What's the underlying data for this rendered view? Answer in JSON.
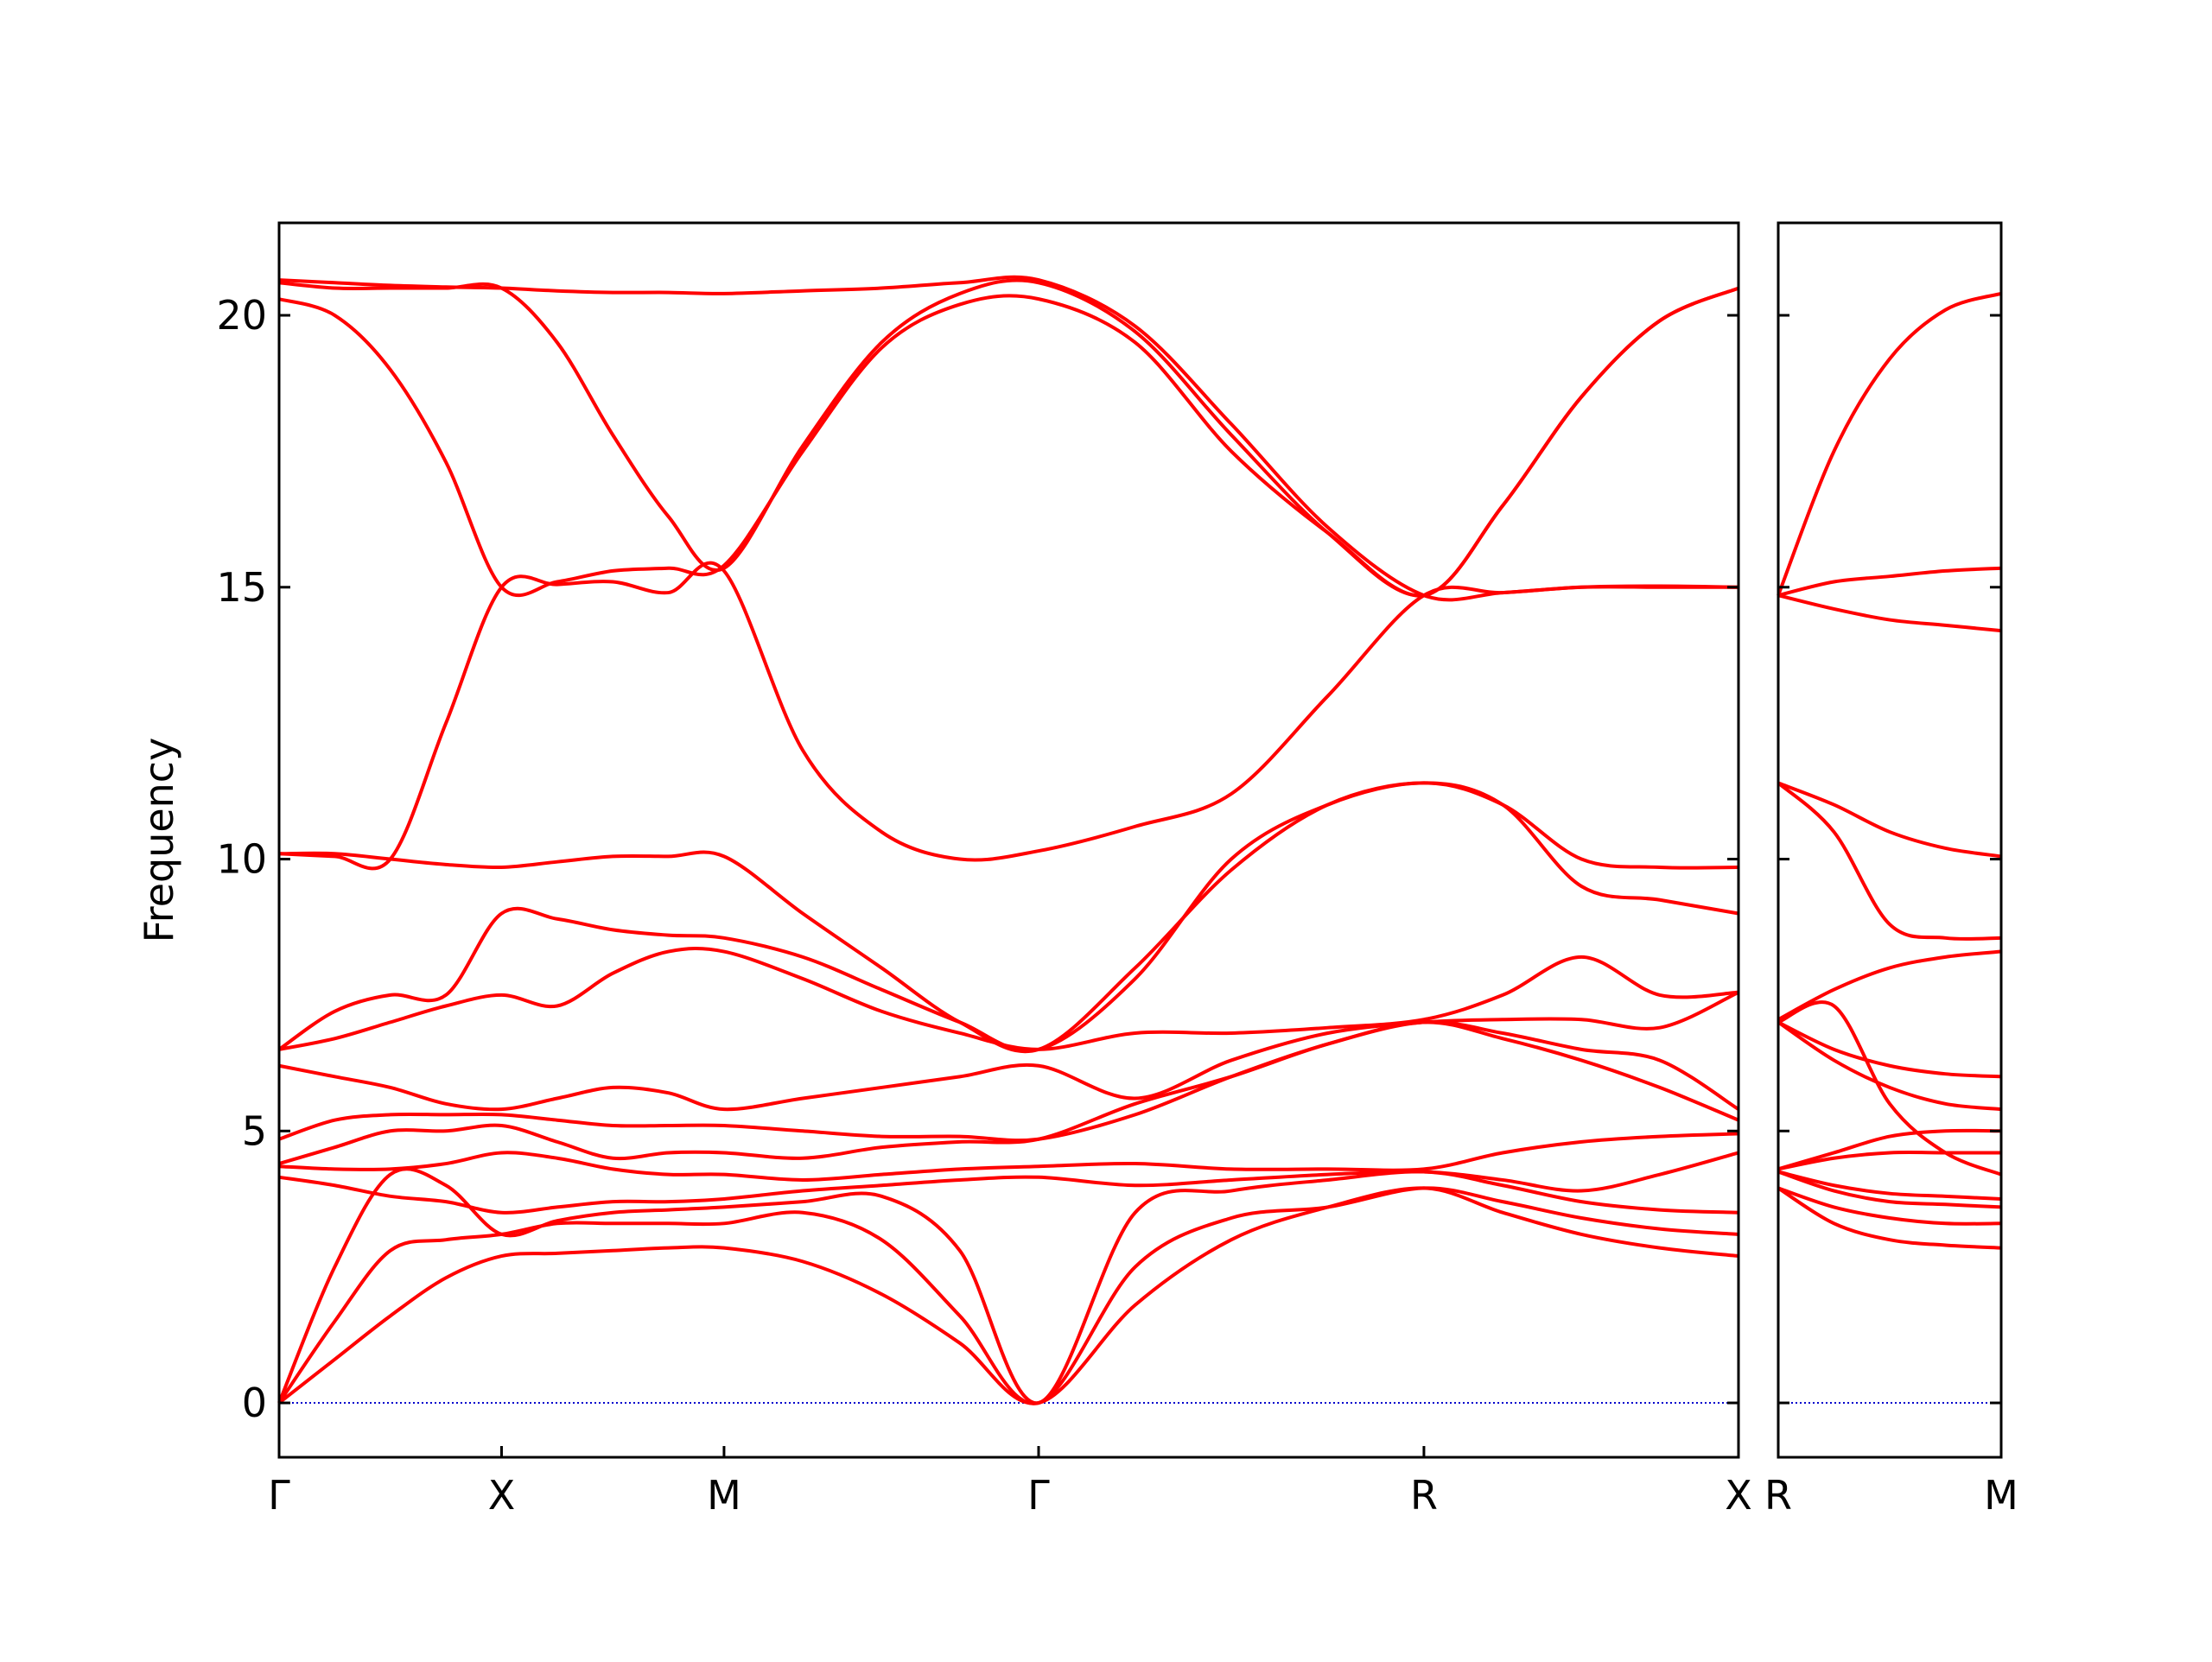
{
  "chart_data": [
    {
      "type": "line",
      "ylabel": "Frequency",
      "color": "#ff0000",
      "zero_line": true,
      "zero_line_color": "#0000cc",
      "xlim": [
        0,
        3.28
      ],
      "ylim": [
        -1,
        21.7
      ],
      "xticks": [
        {
          "value": 0,
          "label": "Γ"
        },
        {
          "value": 0.5,
          "label": "X"
        },
        {
          "value": 1.0,
          "label": "M"
        },
        {
          "value": 1.707,
          "label": "Γ"
        },
        {
          "value": 2.573,
          "label": "R"
        },
        {
          "value": 3.28,
          "label": "X"
        }
      ],
      "yticks": [
        0,
        5,
        10,
        15,
        20
      ],
      "x": [
        0,
        0.125,
        0.25,
        0.375,
        0.5,
        0.625,
        0.75,
        0.875,
        1.0,
        1.177,
        1.354,
        1.53,
        1.707,
        1.924,
        2.14,
        2.357,
        2.573,
        2.75,
        2.927,
        3.103,
        3.28
      ],
      "series": [
        {
          "values": [
            0,
            0.8,
            1.6,
            2.3,
            2.7,
            2.75,
            2.8,
            2.85,
            2.85,
            2.6,
            2.0,
            1.1,
            0,
            1.8,
            3.0,
            3.6,
            3.95,
            3.5,
            3.1,
            2.85,
            2.7
          ]
        },
        {
          "values": [
            0,
            1.5,
            2.8,
            3.0,
            3.1,
            3.3,
            3.3,
            3.3,
            3.3,
            3.5,
            3.0,
            1.6,
            0,
            2.5,
            3.4,
            3.6,
            3.95,
            3.7,
            3.4,
            3.2,
            3.1
          ]
        },
        {
          "values": [
            0,
            2.5,
            4.2,
            4.0,
            3.1,
            3.35,
            3.5,
            3.55,
            3.6,
            3.7,
            3.8,
            2.8,
            0,
            3.5,
            3.9,
            4.1,
            4.25,
            4.0,
            3.7,
            3.55,
            3.5
          ]
        },
        {
          "values": [
            4.15,
            4.0,
            3.8,
            3.7,
            3.5,
            3.6,
            3.7,
            3.7,
            3.75,
            3.9,
            4.0,
            4.1,
            4.15,
            4.0,
            4.1,
            4.2,
            4.25,
            4.1,
            3.9,
            4.2,
            4.6
          ]
        },
        {
          "values": [
            4.35,
            4.3,
            4.3,
            4.4,
            4.6,
            4.5,
            4.3,
            4.2,
            4.2,
            4.1,
            4.2,
            4.3,
            4.35,
            4.4,
            4.3,
            4.3,
            4.3,
            4.6,
            4.8,
            4.9,
            4.95
          ]
        },
        {
          "values": [
            4.4,
            4.7,
            5.0,
            5.0,
            5.1,
            4.8,
            4.5,
            4.6,
            4.6,
            4.5,
            4.7,
            4.8,
            4.85,
            5.5,
            6.0,
            6.6,
            7.0,
            6.7,
            6.3,
            5.8,
            5.2
          ]
        },
        {
          "values": [
            4.85,
            5.2,
            5.3,
            5.3,
            5.3,
            5.2,
            5.1,
            5.1,
            5.1,
            5.0,
            4.9,
            4.9,
            4.85,
            5.3,
            6.0,
            6.6,
            7.0,
            6.8,
            6.5,
            6.3,
            5.4
          ]
        },
        {
          "values": [
            6.2,
            6.0,
            5.8,
            5.5,
            5.4,
            5.6,
            5.8,
            5.7,
            5.4,
            5.6,
            5.8,
            6.0,
            6.2,
            5.6,
            6.3,
            6.8,
            7.0,
            7.05,
            7.05,
            6.9,
            7.55
          ]
        },
        {
          "values": [
            6.5,
            6.7,
            7.0,
            7.3,
            7.5,
            7.3,
            7.9,
            8.3,
            8.3,
            7.8,
            7.2,
            6.8,
            6.5,
            6.8,
            6.8,
            6.9,
            7.05,
            7.5,
            8.2,
            7.5,
            7.55
          ]
        },
        {
          "values": [
            6.5,
            7.2,
            7.5,
            7.5,
            9.0,
            8.9,
            8.7,
            8.6,
            8.55,
            8.2,
            7.6,
            7.0,
            6.5,
            7.8,
            10.0,
            11.0,
            11.4,
            11.0,
            9.5,
            9.25,
            9.0
          ]
        },
        {
          "values": [
            10.1,
            10.1,
            10.0,
            9.9,
            9.85,
            9.95,
            10.05,
            10.05,
            10.05,
            9.0,
            8.0,
            7.0,
            6.5,
            8.0,
            9.8,
            11.0,
            11.4,
            11.0,
            10.0,
            9.85,
            9.85
          ]
        },
        {
          "values": [
            10.1,
            10.05,
            10.0,
            12.5,
            15.0,
            15.05,
            15.1,
            14.9,
            15.3,
            12.0,
            10.5,
            10.0,
            10.15,
            10.6,
            11.2,
            13.0,
            14.85,
            14.9,
            15.0,
            15.0,
            15.0
          ]
        },
        {
          "values": [
            20.3,
            20.0,
            19.0,
            17.3,
            15.0,
            15.1,
            15.3,
            15.35,
            15.4,
            17.5,
            19.4,
            20.2,
            20.3,
            19.5,
            17.5,
            16.0,
            14.85,
            16.5,
            18.5,
            19.9,
            20.5
          ]
        },
        {
          "values": [
            20.6,
            20.5,
            20.5,
            20.5,
            20.5,
            19.5,
            17.8,
            16.3,
            15.35,
            17.6,
            19.5,
            20.4,
            20.6,
            19.7,
            17.8,
            16.0,
            14.85,
            16.5,
            18.5,
            19.9,
            20.5
          ]
        },
        {
          "values": [
            20.65,
            20.6,
            20.55,
            20.52,
            20.5,
            20.45,
            20.42,
            20.42,
            20.4,
            20.45,
            20.5,
            20.6,
            20.65,
            19.8,
            18.0,
            16.1,
            14.85,
            14.9,
            15.0,
            15.02,
            15.0
          ]
        }
      ]
    },
    {
      "type": "line",
      "color": "#ff0000",
      "zero_line": true,
      "zero_line_color": "#0000cc",
      "xlim": [
        0,
        0.5
      ],
      "ylim": [
        -1,
        21.7
      ],
      "xticks": [
        {
          "value": 0,
          "label": "R"
        },
        {
          "value": 0.5,
          "label": "M"
        }
      ],
      "yticks": [
        0,
        5,
        10,
        15,
        20
      ],
      "x": [
        0,
        0.125,
        0.25,
        0.375,
        0.5
      ],
      "series": [
        {
          "values": [
            3.95,
            3.3,
            3.0,
            2.9,
            2.85
          ]
        },
        {
          "values": [
            3.95,
            3.6,
            3.4,
            3.3,
            3.3
          ]
        },
        {
          "values": [
            4.25,
            3.9,
            3.7,
            3.65,
            3.6
          ]
        },
        {
          "values": [
            4.25,
            4.0,
            3.85,
            3.8,
            3.75
          ]
        },
        {
          "values": [
            4.3,
            4.5,
            4.6,
            4.6,
            4.6
          ]
        },
        {
          "values": [
            4.3,
            4.6,
            4.9,
            5.0,
            5.0
          ]
        },
        {
          "values": [
            7.0,
            7.3,
            5.5,
            4.6,
            4.2
          ]
        },
        {
          "values": [
            7.0,
            6.3,
            5.8,
            5.5,
            5.4
          ]
        },
        {
          "values": [
            7.0,
            6.5,
            6.2,
            6.05,
            6.0
          ]
        },
        {
          "values": [
            7.05,
            7.6,
            8.0,
            8.2,
            8.3
          ]
        },
        {
          "values": [
            11.4,
            10.5,
            8.8,
            8.55,
            8.55
          ]
        },
        {
          "values": [
            11.4,
            11.0,
            10.5,
            10.2,
            10.05
          ]
        },
        {
          "values": [
            14.85,
            14.6,
            14.4,
            14.3,
            14.2
          ]
        },
        {
          "values": [
            14.85,
            15.1,
            15.2,
            15.3,
            15.35
          ]
        },
        {
          "values": [
            14.85,
            17.5,
            19.2,
            20.1,
            20.4
          ]
        }
      ]
    }
  ]
}
